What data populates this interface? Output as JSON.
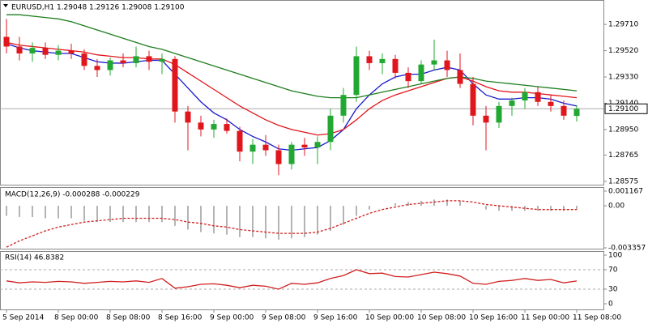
{
  "chart_data": [
    {
      "type": "candlestick",
      "title": "EURUSD,H1  1.29048 1.29126 1.29008 1.29100",
      "categories": [
        "5 Sep 2014",
        null,
        null,
        null,
        "8 Sep 00:00",
        null,
        null,
        null,
        "8 Sep 08:00",
        null,
        null,
        null,
        "8 Sep 16:00",
        null,
        null,
        null,
        "9 Sep 00:00",
        null,
        null,
        null,
        "9 Sep 08:00",
        null,
        null,
        null,
        "9 Sep 16:00",
        null,
        null,
        null,
        "10 Sep 00:00",
        null,
        null,
        null,
        "10 Sep 08:00",
        null,
        null,
        null,
        "10 Sep 16:00",
        null,
        null,
        null,
        "11 Sep 00:00",
        null,
        null,
        null,
        "11 Sep 08:00"
      ],
      "open": [
        1.2962,
        1.2955,
        1.295,
        1.2954,
        1.2949,
        1.2952,
        1.295,
        1.2941,
        1.2938,
        1.2945,
        1.2943,
        1.2948,
        1.2944,
        1.2946,
        1.2908,
        1.29,
        1.2895,
        1.2899,
        1.2894,
        1.2879,
        1.2884,
        1.288,
        1.287,
        1.2884,
        1.2882,
        1.2886,
        1.2905,
        1.292,
        1.2948,
        1.2943,
        1.2946,
        1.2936,
        1.293,
        1.2942,
        1.2945,
        1.2938,
        1.2928,
        1.2905,
        1.29,
        1.2912,
        1.2916,
        1.2922,
        1.2915,
        1.2912,
        1.29048
      ],
      "high": [
        1.2975,
        1.2962,
        1.2958,
        1.2958,
        1.2956,
        1.2957,
        1.2953,
        1.2946,
        1.2947,
        1.295,
        1.2955,
        1.2952,
        1.295,
        1.2948,
        1.2912,
        1.2905,
        1.2902,
        1.2903,
        1.2897,
        1.2888,
        1.2891,
        1.2884,
        1.2886,
        1.2889,
        1.289,
        1.291,
        1.2925,
        1.2955,
        1.2952,
        1.295,
        1.2949,
        1.294,
        1.2945,
        1.296,
        1.2952,
        1.295,
        1.2933,
        1.2912,
        1.2915,
        1.2918,
        1.2925,
        1.2926,
        1.292,
        1.2916,
        1.29126
      ],
      "low": [
        1.295,
        1.2945,
        1.2944,
        1.2946,
        1.2945,
        1.2946,
        1.2938,
        1.2933,
        1.2934,
        1.294,
        1.294,
        1.2938,
        1.2935,
        1.29,
        1.288,
        1.289,
        1.2889,
        1.2892,
        1.2872,
        1.287,
        1.2876,
        1.2862,
        1.2866,
        1.2876,
        1.287,
        1.288,
        1.29,
        1.2915,
        1.2938,
        1.2935,
        1.2932,
        1.2925,
        1.2928,
        1.2938,
        1.2933,
        1.2925,
        1.2898,
        1.288,
        1.2896,
        1.2905,
        1.291,
        1.2912,
        1.2908,
        1.2902,
        1.29008
      ],
      "close": [
        1.2955,
        1.295,
        1.2954,
        1.2949,
        1.2952,
        1.295,
        1.2941,
        1.2938,
        1.2945,
        1.2943,
        1.2948,
        1.2944,
        1.2946,
        1.2908,
        1.29,
        1.2895,
        1.2899,
        1.2894,
        1.2879,
        1.2884,
        1.288,
        1.287,
        1.2884,
        1.2882,
        1.2886,
        1.2905,
        1.292,
        1.2948,
        1.2943,
        1.2946,
        1.2936,
        1.293,
        1.2942,
        1.2945,
        1.2938,
        1.2928,
        1.2905,
        1.29,
        1.2912,
        1.2916,
        1.2922,
        1.2915,
        1.2912,
        1.2905,
        1.291
      ],
      "up_color": "#22a832",
      "down_color": "#e0161c",
      "lines": [
        {
          "color": "#1a1acc",
          "values": [
            1.2957,
            1.2954,
            1.2952,
            1.2951,
            1.295,
            1.295,
            1.2947,
            1.2944,
            1.2943,
            1.2943,
            1.2944,
            1.2945,
            1.2945,
            1.2935,
            1.2925,
            1.2915,
            1.2907,
            1.2902,
            1.2895,
            1.289,
            1.2886,
            1.2881,
            1.288,
            1.2881,
            1.2882,
            1.2887,
            1.2895,
            1.291,
            1.292,
            1.2928,
            1.2933,
            1.2935,
            1.2935,
            1.2938,
            1.294,
            1.2938,
            1.2928,
            1.292,
            1.2917,
            1.2917,
            1.2918,
            1.2918,
            1.2917,
            1.2914,
            1.2912
          ]
        },
        {
          "color": "#e0161c",
          "values": [
            1.2958,
            1.2956,
            1.2955,
            1.2954,
            1.2953,
            1.2952,
            1.2951,
            1.2949,
            1.2948,
            1.2947,
            1.2947,
            1.2946,
            1.2946,
            1.2942,
            1.2936,
            1.293,
            1.2924,
            1.2918,
            1.2912,
            1.2907,
            1.2902,
            1.2898,
            1.2895,
            1.2893,
            1.2891,
            1.2892,
            1.2895,
            1.2902,
            1.291,
            1.2916,
            1.292,
            1.2923,
            1.2926,
            1.2929,
            1.2932,
            1.2933,
            1.293,
            1.2926,
            1.2923,
            1.2922,
            1.2922,
            1.2921,
            1.292,
            1.2919,
            1.2918
          ]
        },
        {
          "color": "#1e7d1e",
          "values": [
            1.2978,
            1.2978,
            1.2977,
            1.2976,
            1.2975,
            1.2973,
            1.297,
            1.2967,
            1.2964,
            1.2961,
            1.2958,
            1.2955,
            1.2953,
            1.295,
            1.2947,
            1.2944,
            1.2941,
            1.2938,
            1.2935,
            1.2932,
            1.2929,
            1.2926,
            1.2923,
            1.2921,
            1.2919,
            1.2918,
            1.2918,
            1.2918,
            1.292,
            1.2922,
            1.2924,
            1.2926,
            1.2928,
            1.293,
            1.2932,
            1.2933,
            1.2932,
            1.293,
            1.2929,
            1.2928,
            1.2927,
            1.2926,
            1.2925,
            1.2924,
            1.2923
          ]
        }
      ],
      "last_price": {
        "value": 1.291,
        "label": "1.29100"
      },
      "ylim": [
        1.28551,
        1.29828
      ],
      "yticks": [
        {
          "value": 1.2971,
          "label": "1.29710"
        },
        {
          "value": 1.2952,
          "label": "1.29520"
        },
        {
          "value": 1.2933,
          "label": "1.29330"
        },
        {
          "value": 1.2914,
          "label": "1.29140"
        },
        {
          "value": 1.2895,
          "label": "1.28950"
        },
        {
          "value": 1.28765,
          "label": "1.28765"
        },
        {
          "value": 1.28575,
          "label": "1.28575"
        }
      ]
    },
    {
      "type": "macd",
      "title": "MACD(12,26,9) -0.000288 -0.000229",
      "histogram": {
        "color": "#b4b4b4",
        "values": [
          -0.0008,
          -0.0009,
          -0.0009,
          -0.001,
          -0.001,
          -0.001,
          -0.0012,
          -0.0013,
          -0.0013,
          -0.0013,
          -0.0013,
          -0.0013,
          -0.0013,
          -0.0016,
          -0.0019,
          -0.0021,
          -0.0022,
          -0.0023,
          -0.0025,
          -0.0025,
          -0.0026,
          -0.0027,
          -0.0026,
          -0.0025,
          -0.0023,
          -0.002,
          -0.0015,
          -0.0008,
          -0.0003,
          0,
          0.0002,
          0.0003,
          0.0004,
          0.0005,
          0.0005,
          0.0004,
          0,
          -0.0003,
          -0.0004,
          -0.0004,
          -0.0004,
          -0.0004,
          -0.0004,
          -0.0004,
          -0.0003
        ]
      },
      "signal": {
        "color": "#d02020",
        "values": [
          -0.0033,
          -0.0028,
          -0.0024,
          -0.002,
          -0.0017,
          -0.0015,
          -0.0013,
          -0.0012,
          -0.0011,
          -0.001,
          -0.001,
          -0.001,
          -0.001,
          -0.0011,
          -0.0013,
          -0.0014,
          -0.0016,
          -0.0017,
          -0.0019,
          -0.002,
          -0.0021,
          -0.0022,
          -0.0022,
          -0.0022,
          -0.0021,
          -0.0018,
          -0.0014,
          -0.001,
          -0.0006,
          -0.0003,
          -0.0001,
          0.0001,
          0.0002,
          0.0003,
          0.0004,
          0.0004,
          0.0003,
          0.0001,
          0,
          -0.0001,
          -0.0002,
          -0.0003,
          -0.0003,
          -0.0003,
          -0.0003
        ]
      },
      "ylim": [
        -0.003357,
        0.001167
      ],
      "yticks": [
        0.001167,
        {
          "value": 0,
          "label": "0.00"
        },
        -0.003357
      ]
    },
    {
      "type": "line",
      "title": "RSI(14) 46.8382",
      "color": "#d02020",
      "values": [
        47,
        43,
        45,
        44,
        46,
        45,
        42,
        44,
        46,
        45,
        47,
        44,
        52,
        32,
        35,
        40,
        41,
        38,
        33,
        38,
        36,
        30,
        42,
        40,
        43,
        52,
        58,
        70,
        62,
        63,
        56,
        55,
        60,
        65,
        62,
        57,
        42,
        40,
        46,
        48,
        52,
        48,
        50,
        43,
        46.8382
      ],
      "ylim": [
        0,
        100
      ],
      "yticks": [
        100,
        70,
        30,
        0
      ],
      "grid": "dashed"
    }
  ]
}
